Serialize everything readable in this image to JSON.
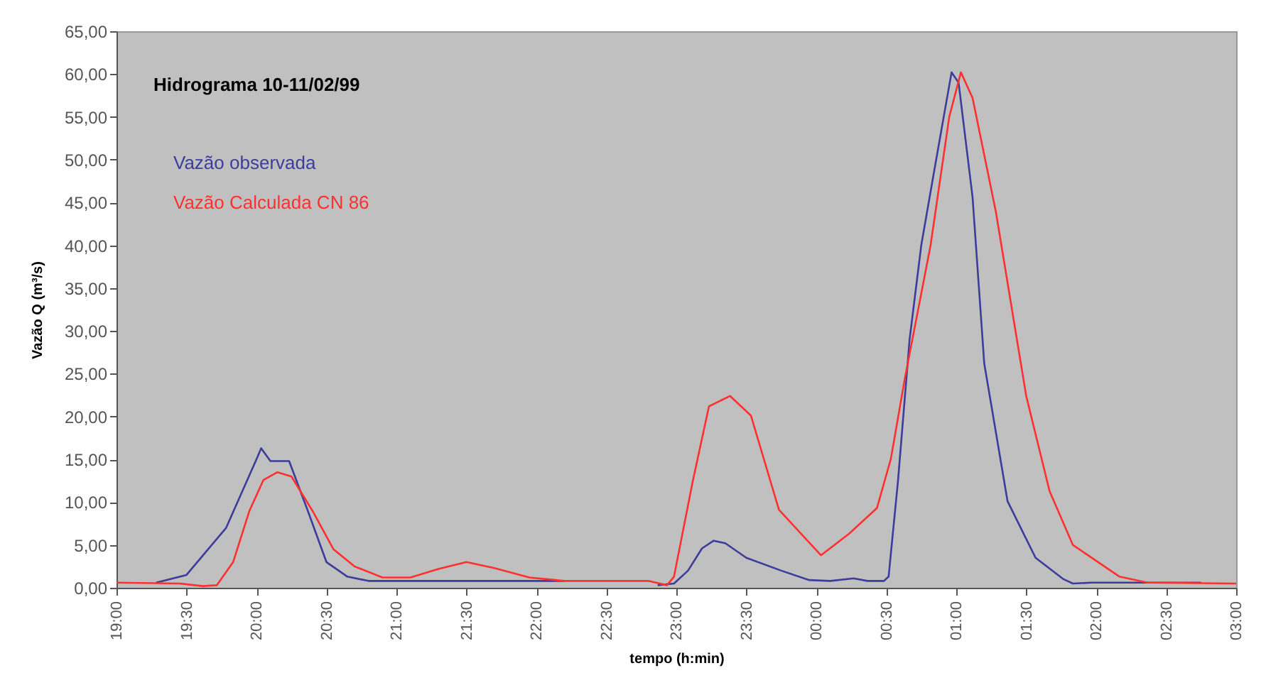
{
  "chart_data": {
    "type": "line",
    "title": "Hidrograma 10-11/02/99",
    "xlabel": "tempo (h:min)",
    "ylabel": "Vazão Q (m³/s)",
    "xlim": [
      "--02-10T19:00",
      "--02-11T03:00"
    ],
    "ylim": [
      0,
      65
    ],
    "xticks": [
      {
        "value": "--02-10T19:00",
        "label": "19:00"
      },
      {
        "value": "--02-10T19:30",
        "label": "19:30"
      },
      {
        "value": "--02-10T20:00",
        "label": "20:00"
      },
      {
        "value": "--02-10T20:30",
        "label": "20:30"
      },
      {
        "value": "--02-10T21:00",
        "label": "21:00"
      },
      {
        "value": "--02-10T21:30",
        "label": "21:30"
      },
      {
        "value": "--02-10T22:00",
        "label": "22:00"
      },
      {
        "value": "--02-10T22:30",
        "label": "22:30"
      },
      {
        "value": "--02-10T23:00",
        "label": "23:00"
      },
      {
        "value": "--02-10T23:30",
        "label": "23:30"
      },
      {
        "value": "--02-11T00:00",
        "label": "00:00"
      },
      {
        "value": "--02-11T00:30",
        "label": "00:30"
      },
      {
        "value": "--02-11T01:00",
        "label": "01:00"
      },
      {
        "value": "--02-11T01:30",
        "label": "01:30"
      },
      {
        "value": "--02-11T02:00",
        "label": "02:00"
      },
      {
        "value": "--02-11T02:30",
        "label": "02:30"
      },
      {
        "value": "--02-11T03:00",
        "label": "03:00"
      }
    ],
    "yticks": [
      {
        "value": 0,
        "label": "0,00"
      },
      {
        "value": 5,
        "label": "5,00"
      },
      {
        "value": 10,
        "label": "10,00"
      },
      {
        "value": 15,
        "label": "15,00"
      },
      {
        "value": 20,
        "label": "20,00"
      },
      {
        "value": 25,
        "label": "25,00"
      },
      {
        "value": 30,
        "label": "30,00"
      },
      {
        "value": 35,
        "label": "35,00"
      },
      {
        "value": 40,
        "label": "40,00"
      },
      {
        "value": 45,
        "label": "45,00"
      },
      {
        "value": 50,
        "label": "50,00"
      },
      {
        "value": 55,
        "label": "55,00"
      },
      {
        "value": 60,
        "label": "60,00"
      },
      {
        "value": 65,
        "label": "65,00"
      }
    ],
    "legend": "top left",
    "grid": false,
    "marker": "none",
    "line_style": "solid",
    "series": [
      {
        "name": "Vazão observada",
        "color": "#3c3c9c",
        "x": [
          "--02-10T19:17",
          "--02-10T19:30",
          "--02-10T19:47",
          "--02-10T20:00",
          "--02-10T20:02",
          "--02-10T20:06",
          "--02-10T20:14",
          "--02-10T20:22",
          "--02-10T20:30",
          "--02-10T20:39",
          "--02-10T20:48",
          "--02-10T21:12",
          "--02-10T21:36",
          "--02-10T22:00",
          "--02-10T22:12",
          "--02-10T22:30",
          "--02-10T22:52",
          "--02-10T22:59",
          "--02-10T23:05",
          "--02-10T23:11",
          "--02-10T23:16",
          "--02-10T23:21",
          "--02-10T23:30",
          "--02-10T23:45",
          "--02-10T23:57",
          "--02-11T00:06",
          "--02-11T00:16",
          "--02-11T00:22",
          "--02-11T00:29",
          "--02-11T00:31",
          "--02-11T00:35",
          "--02-11T00:40",
          "--02-11T00:45",
          "--02-11T00:51",
          "--02-11T00:58",
          "--02-11T01:01",
          "--02-11T01:07",
          "--02-11T01:12",
          "--02-11T01:22",
          "--02-11T01:34",
          "--02-11T01:46",
          "--02-11T01:50",
          "--02-11T01:58",
          "--02-11T02:45"
        ],
        "values": [
          0.6,
          1.5,
          7,
          15,
          16.3,
          14.8,
          14.8,
          9,
          3,
          1.3,
          0.8,
          0.8,
          0.8,
          0.8,
          0.8,
          null,
          0.3,
          0.5,
          2,
          4.6,
          5.5,
          5.2,
          3.5,
          2,
          0.9,
          0.8,
          1.1,
          0.8,
          0.8,
          1.3,
          12.4,
          29,
          40,
          49.4,
          60.2,
          59,
          45.6,
          26.2,
          10.1,
          3.5,
          1,
          0.5,
          0.6,
          0.6
        ]
      },
      {
        "name": "Vazão Calculada CN 86",
        "color": "#ff3030",
        "x": [
          "--02-10T19:00",
          "--02-10T19:27",
          "--02-10T19:37",
          "--02-10T19:43",
          "--02-10T19:50",
          "--02-10T19:57",
          "--02-10T20:03",
          "--02-10T20:09",
          "--02-10T20:15",
          "--02-10T20:24",
          "--02-10T20:33",
          "--02-10T20:42",
          "--02-10T20:54",
          "--02-10T21:06",
          "--02-10T21:18",
          "--02-10T21:30",
          "--02-10T21:42",
          "--02-10T21:57",
          "--02-10T22:12",
          "--02-10T22:48",
          "--02-10T22:56",
          "--02-10T22:59",
          "--02-10T23:07",
          "--02-10T23:14",
          "--02-10T23:23",
          "--02-10T23:32",
          "--02-10T23:44",
          "--02-11T00:02",
          "--02-11T00:14",
          "--02-11T00:26",
          "--02-11T00:32",
          "--02-11T00:38",
          "--02-11T00:49",
          "--02-11T00:57",
          "--02-11T01:02",
          "--02-11T01:07",
          "--02-11T01:17",
          "--02-11T01:30",
          "--02-11T01:40",
          "--02-11T01:50",
          "--02-11T02:10",
          "--02-11T02:22",
          "--02-11T03:00"
        ],
        "values": [
          0.6,
          0.5,
          0.2,
          0.3,
          3,
          9,
          12.6,
          13.5,
          13,
          9,
          4.5,
          2.5,
          1.2,
          1.2,
          2.2,
          3,
          2.3,
          1.2,
          0.8,
          0.8,
          0.3,
          1.3,
          12.4,
          21.2,
          22.4,
          20.1,
          9.1,
          3.8,
          6.3,
          9.3,
          15.1,
          24.5,
          40,
          55,
          60.2,
          57.2,
          43.9,
          22.4,
          11.3,
          5,
          1.3,
          0.6,
          0.5
        ]
      }
    ]
  }
}
